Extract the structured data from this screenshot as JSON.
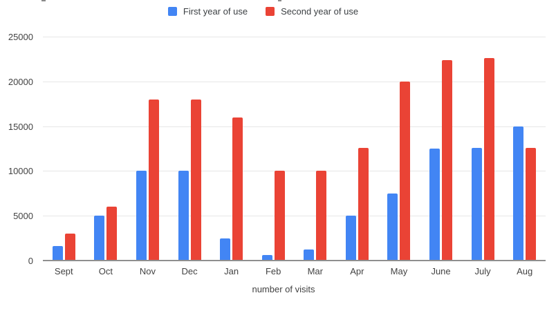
{
  "chart_data": {
    "type": "bar",
    "title": "",
    "categories": [
      "Sept",
      "Oct",
      "Nov",
      "Dec",
      "Jan",
      "Feb",
      "Mar",
      "Apr",
      "May",
      "June",
      "July",
      "Aug"
    ],
    "series": [
      {
        "name": "First year of use",
        "color": "#4285F4",
        "values": [
          1600,
          5000,
          10000,
          10000,
          2500,
          600,
          1200,
          5000,
          7500,
          12500,
          12600,
          15000
        ]
      },
      {
        "name": "Second year of use",
        "color": "#EA4335",
        "values": [
          3000,
          6000,
          18000,
          18000,
          16000,
          10000,
          10000,
          12600,
          20000,
          22400,
          22600,
          12600
        ]
      }
    ],
    "xlabel": "number of visits",
    "ylabel": "",
    "ylim": [
      0,
      25000
    ],
    "yticks": [
      0,
      5000,
      10000,
      15000,
      20000,
      25000
    ],
    "grid": true,
    "legend_position": "top-center",
    "background": "#ffffff"
  }
}
